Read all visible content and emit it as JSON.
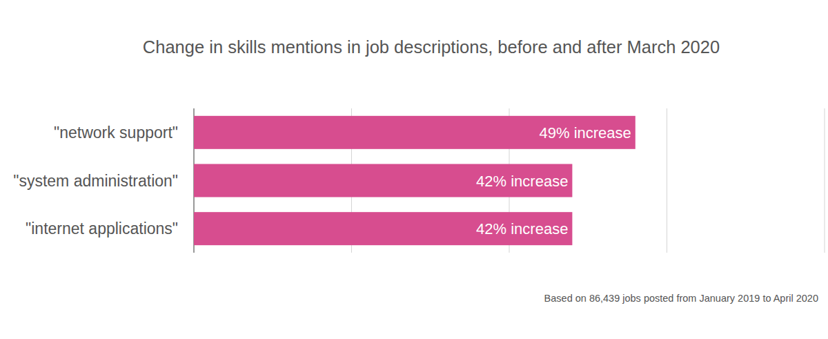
{
  "chart_data": {
    "type": "bar",
    "orientation": "horizontal",
    "title": "Change in skills mentions in job descriptions, before and after March 2020",
    "categories": [
      "\"network support\"",
      "\"system administration\"",
      "\"internet applications\""
    ],
    "values": [
      49,
      42,
      42
    ],
    "value_labels": [
      "49% increase",
      "42% increase",
      "42% increase"
    ],
    "data_labels": true,
    "color": "#d74d8f",
    "xlim": [
      0,
      70
    ],
    "xticks": [
      0,
      17.5,
      35,
      52.5,
      70
    ],
    "grid": true,
    "tick_labels": false,
    "annotations": [
      "Based on 86,439 jobs posted from January 2019 to April 2020"
    ]
  }
}
